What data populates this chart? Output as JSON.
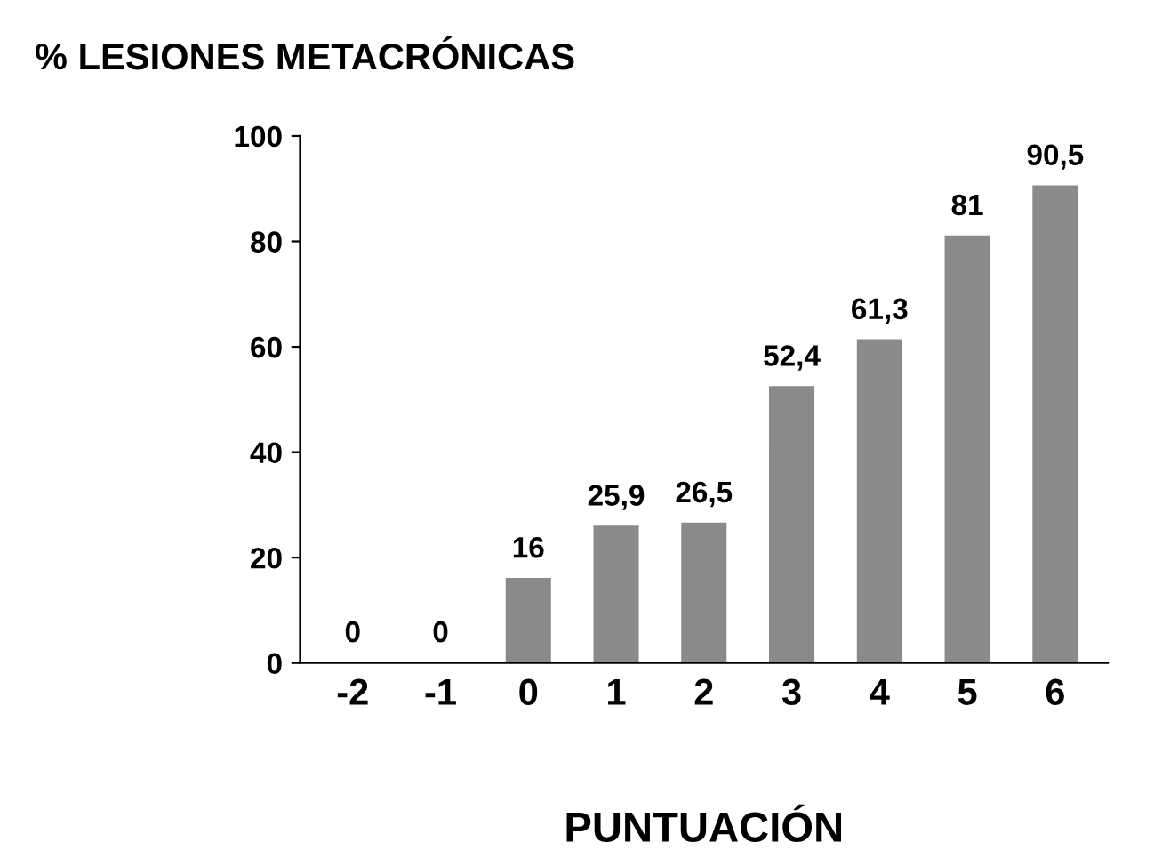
{
  "chart_data": {
    "type": "bar",
    "title": "% LESIONES METACRÓNICAS",
    "xlabel": "PUNTUACIÓN",
    "categories": [
      "-2",
      "-1",
      "0",
      "1",
      "2",
      "3",
      "4",
      "5",
      "6"
    ],
    "values": [
      0,
      0,
      16,
      25.9,
      26.5,
      52.4,
      61.3,
      81,
      90.5
    ],
    "value_labels": [
      "0",
      "0",
      "16",
      "25,9",
      "26,5",
      "52,4",
      "61,3",
      "81",
      "90,5"
    ],
    "color": "#8a8a8a",
    "ylim": [
      0,
      100
    ],
    "yticks": [
      0,
      20,
      40,
      60,
      80,
      100
    ],
    "grid": false,
    "legend": false
  }
}
